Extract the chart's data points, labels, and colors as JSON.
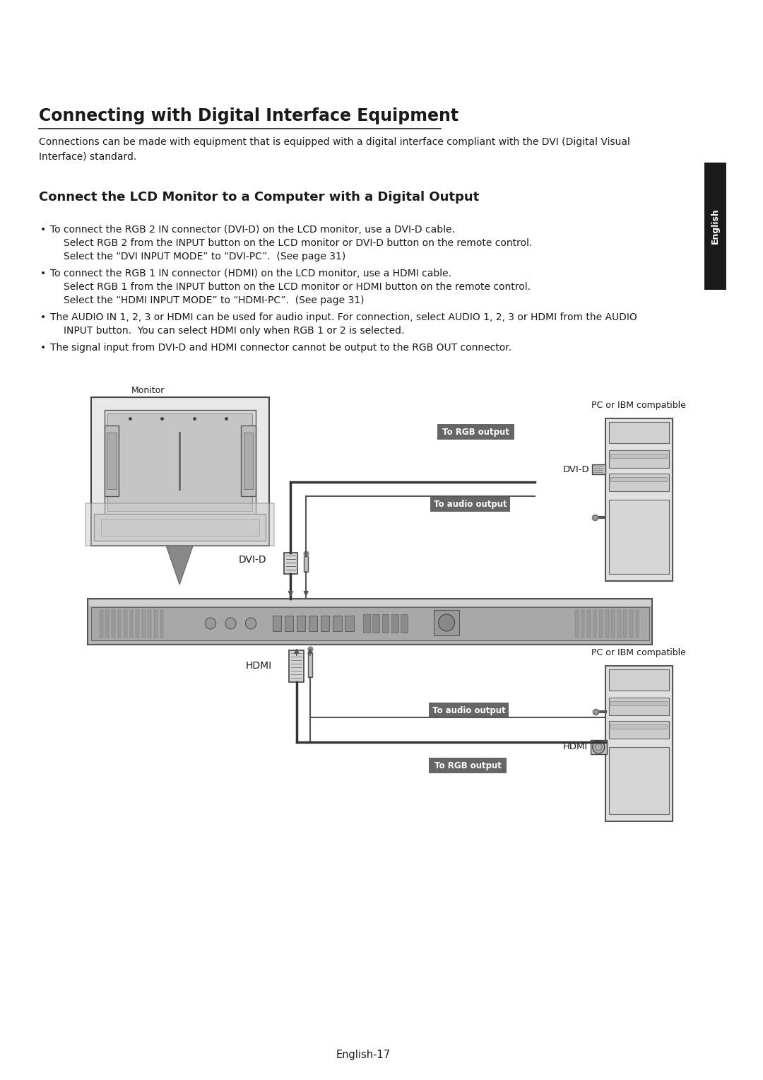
{
  "title": "Connecting with Digital Interface Equipment",
  "subtitle_line1": "Connections can be made with equipment that is equipped with a digital interface compliant with the DVI (Digital Visual",
  "subtitle_line2": "Interface) standard.",
  "section_title": "Connect the LCD Monitor to a Computer with a Digital Output",
  "bullet1_line1": "To connect the RGB 2 IN connector (DVI-D) on the LCD monitor, use a DVI-D cable.",
  "bullet1_line2": "Select RGB 2 from the INPUT button on the LCD monitor or DVI-D button on the remote control.",
  "bullet1_line3": "Select the “DVI INPUT MODE” to “DVI-PC”.  (See page 31)",
  "bullet2_line1": "To connect the RGB 1 IN connector (HDMI) on the LCD monitor, use a HDMI cable.",
  "bullet2_line2": "Select RGB 1 from the INPUT button on the LCD monitor or HDMI button on the remote control.",
  "bullet2_line3": "Select the “HDMI INPUT MODE” to “HDMI-PC”.  (See page 31)",
  "bullet3_line1": "The AUDIO IN 1, 2, 3 or HDMI can be used for audio input. For connection, select AUDIO 1, 2, 3 or HDMI from the AUDIO",
  "bullet3_line2": "INPUT button.  You can select HDMI only when RGB 1 or 2 is selected.",
  "bullet4_line1": "The signal input from DVI-D and HDMI connector cannot be output to the RGB OUT connector.",
  "label_rgb_output": "To RGB output",
  "label_audio_output": "To audio output",
  "label_dvid": "DVI-D",
  "label_hdmi": "HDMI",
  "label_monitor": "Monitor",
  "label_pc1": "PC or IBM compatible",
  "label_pc2": "PC or IBM compatible",
  "tab_text": "English",
  "footer": "English-17",
  "bg_color": "#ffffff",
  "text_color": "#1a1a1a",
  "tab_bg": "#1a1a1a",
  "tab_fg": "#ffffff",
  "label_bg": "#666666",
  "label_fg": "#ffffff",
  "line_color": "#333333",
  "panel_color": "#b0b0b0",
  "panel_dark": "#888888",
  "mon_frame": "#555555",
  "mon_fill": "#dddddd",
  "pc_fill": "#cccccc",
  "pc_edge": "#555555"
}
